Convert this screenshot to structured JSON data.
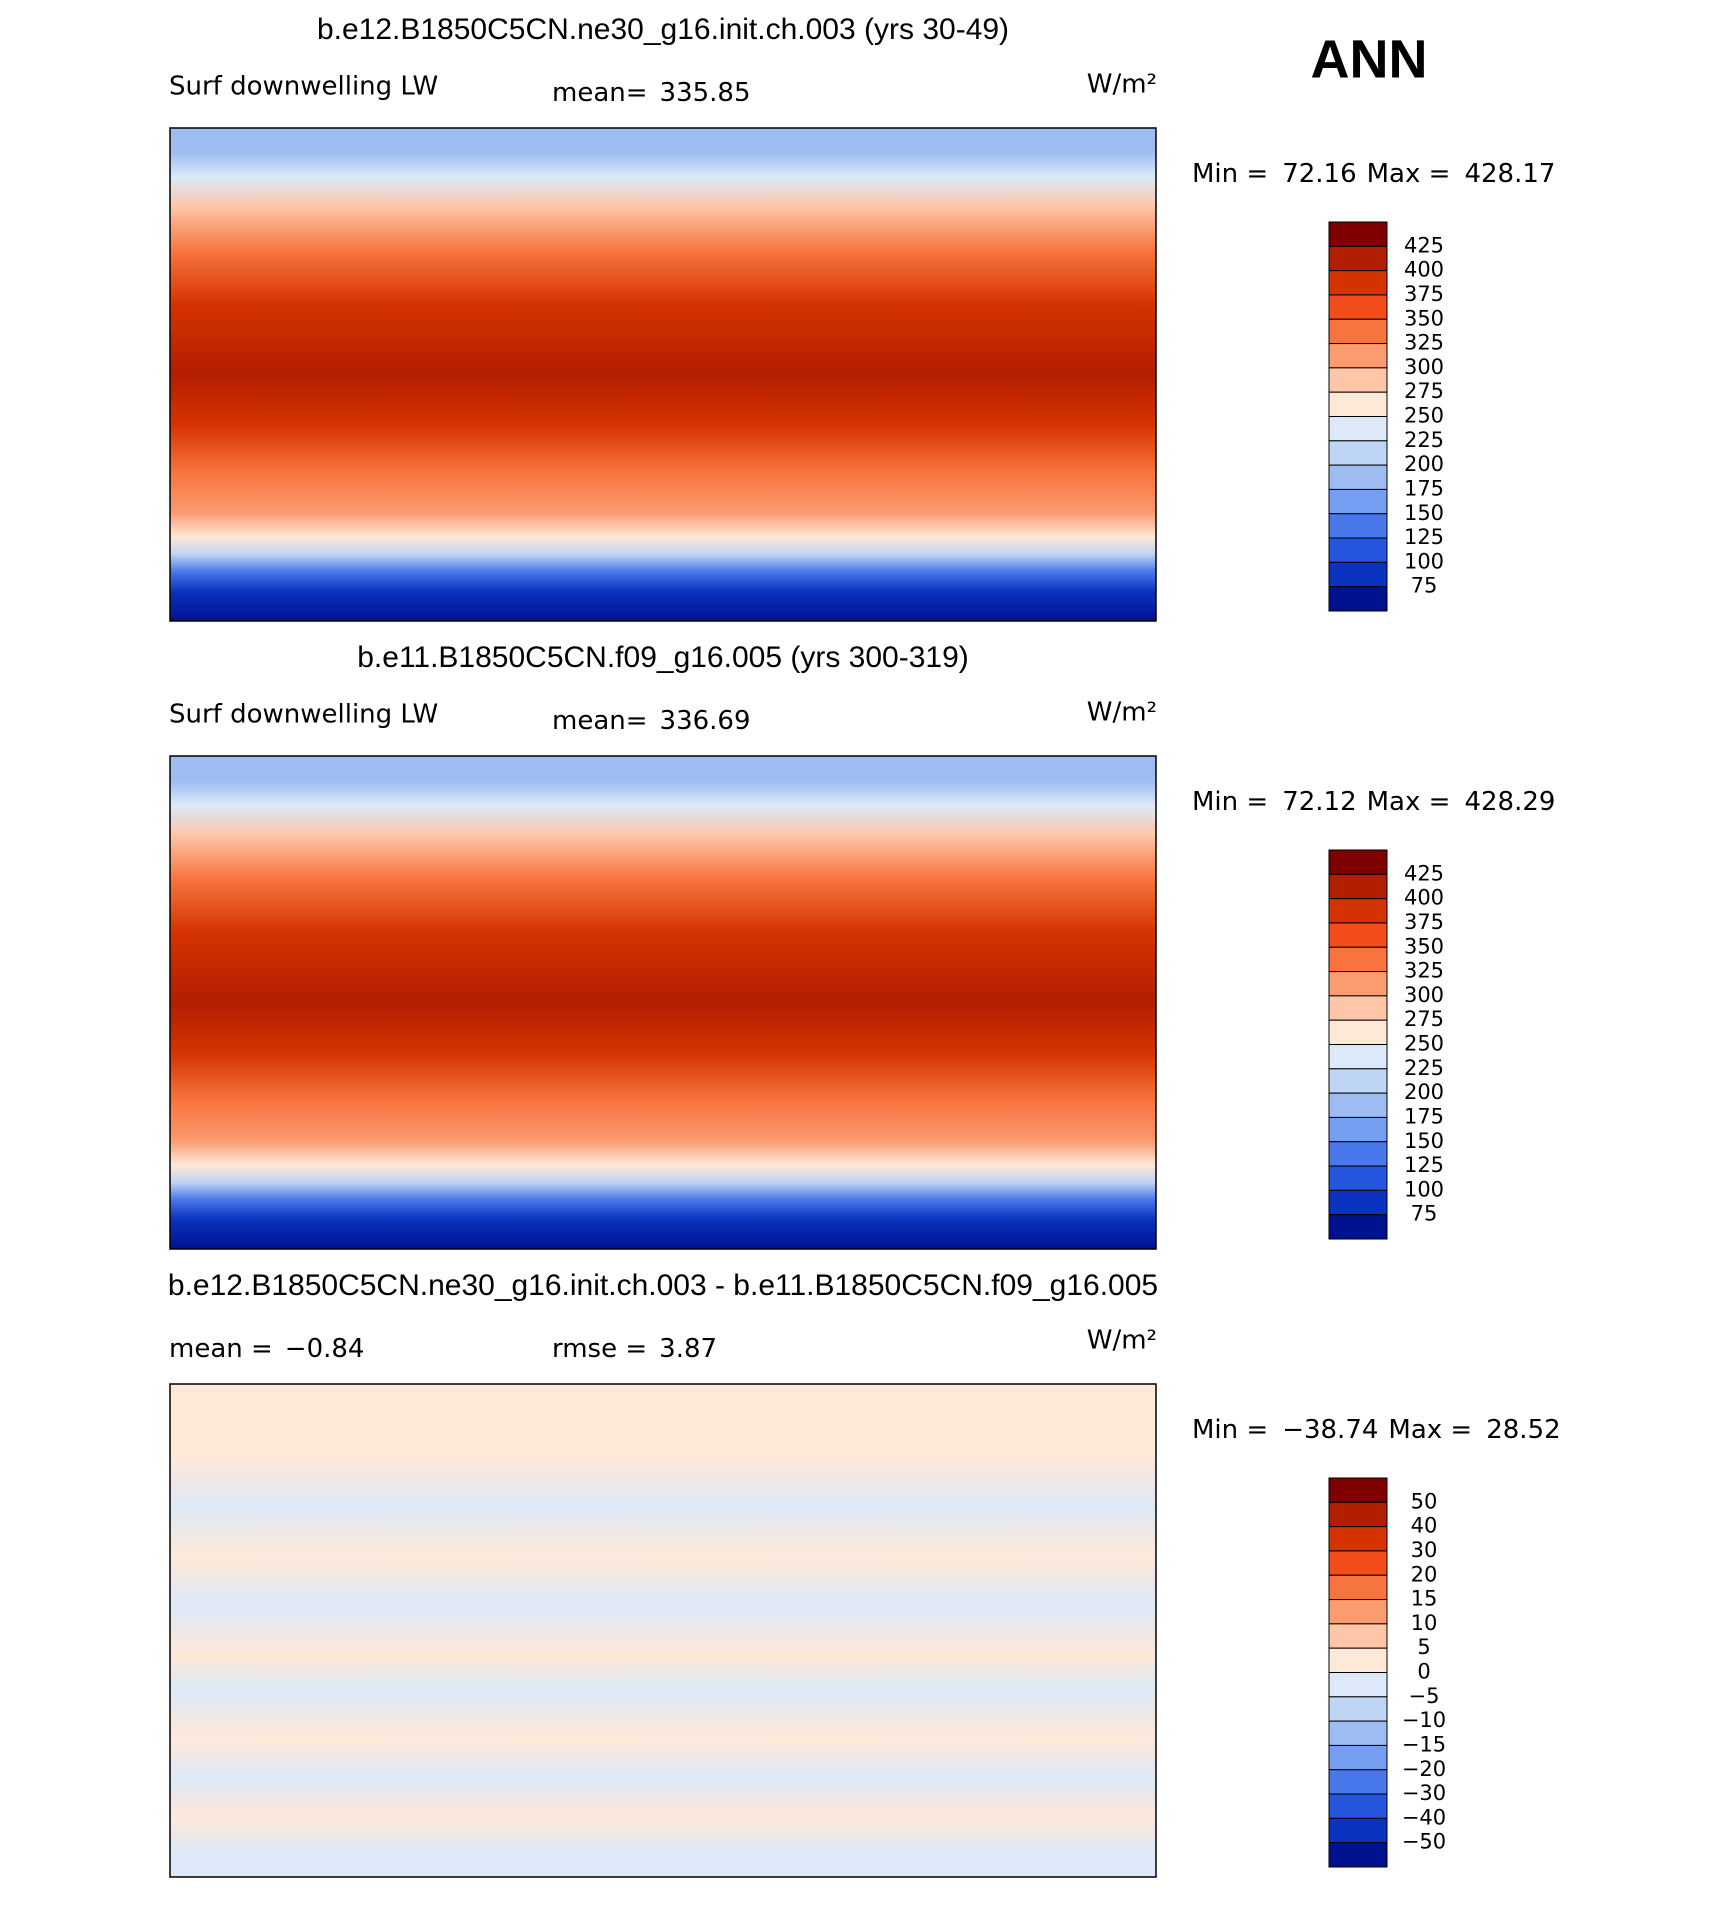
{
  "label": "ANN",
  "panels": [
    {
      "title": "b.e12.B1850C5CN.ne30_g16.init.ch.003 (yrs 30-49)",
      "variable": "Surf downwelling LW",
      "stats": [
        {
          "label": "mean=",
          "value": "335.85"
        }
      ],
      "units": "W/m²",
      "min_label": "Min =",
      "min": "72.16",
      "max_label": "Max =",
      "max": "428.17",
      "colorbar": {
        "labels": [
          "425",
          "400",
          "375",
          "350",
          "325",
          "300",
          "275",
          "250",
          "225",
          "200",
          "175",
          "150",
          "125",
          "100",
          "75"
        ],
        "colors": [
          "#7f0000",
          "#b21e00",
          "#d43300",
          "#f24d1a",
          "#f8743f",
          "#fb9b70",
          "#fdc6a8",
          "#fee8d8",
          "#dde9f8",
          "#bfd5f5",
          "#9dbdf2",
          "#749ff0",
          "#4878ea",
          "#2455dd",
          "#0a33c0",
          "#00128f"
        ]
      }
    },
    {
      "title": "b.e11.B1850C5CN.f09_g16.005 (yrs 300-319)",
      "variable": "Surf downwelling LW",
      "stats": [
        {
          "label": "mean=",
          "value": "336.69"
        }
      ],
      "units": "W/m²",
      "min_label": "Min =",
      "min": "72.12",
      "max_label": "Max =",
      "max": "428.29",
      "colorbar": {
        "labels": [
          "425",
          "400",
          "375",
          "350",
          "325",
          "300",
          "275",
          "250",
          "225",
          "200",
          "175",
          "150",
          "125",
          "100",
          "75"
        ],
        "colors": [
          "#7f0000",
          "#b21e00",
          "#d43300",
          "#f24d1a",
          "#f8743f",
          "#fb9b70",
          "#fdc6a8",
          "#fee8d8",
          "#dde9f8",
          "#bfd5f5",
          "#9dbdf2",
          "#749ff0",
          "#4878ea",
          "#2455dd",
          "#0a33c0",
          "#00128f"
        ]
      }
    },
    {
      "title": "b.e12.B1850C5CN.ne30_g16.init.ch.003 - b.e11.B1850C5CN.f09_g16.005",
      "stats": [
        {
          "label": "mean =",
          "value": "−0.84"
        },
        {
          "label": "rmse =",
          "value": "3.87"
        }
      ],
      "units": "W/m²",
      "min_label": "Min =",
      "min": "−38.74",
      "max_label": "Max =",
      "max": "28.52",
      "colorbar": {
        "labels": [
          "50",
          "40",
          "30",
          "20",
          "15",
          "10",
          "5",
          "0",
          "−5",
          "−10",
          "−15",
          "−20",
          "−30",
          "−40",
          "−50"
        ],
        "colors": [
          "#7f0000",
          "#b21e00",
          "#d43300",
          "#f24d1a",
          "#f8743f",
          "#fb9b70",
          "#fdc6a8",
          "#fee8d8",
          "#dde9f8",
          "#bfd5f5",
          "#9dbdf2",
          "#749ff0",
          "#4878ea",
          "#2455dd",
          "#0a33c0",
          "#00128f"
        ]
      }
    }
  ]
}
